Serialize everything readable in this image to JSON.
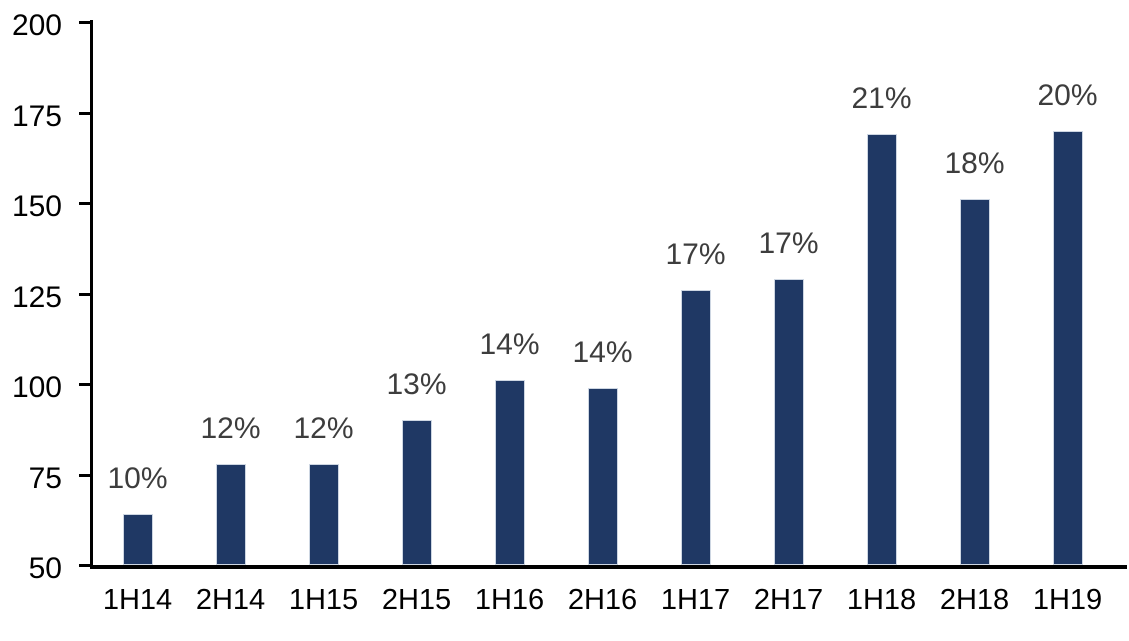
{
  "chart_data": {
    "type": "bar",
    "title": "",
    "xlabel": "",
    "ylabel": "",
    "categories": [
      "1H14",
      "2H14",
      "1H15",
      "2H15",
      "1H16",
      "2H16",
      "1H17",
      "2H17",
      "1H18",
      "2H18",
      "1H19"
    ],
    "values": [
      64,
      78,
      78,
      90,
      101,
      99,
      126,
      129,
      169,
      151,
      170
    ],
    "data_labels": [
      "10%",
      "12%",
      "12%",
      "13%",
      "14%",
      "14%",
      "17%",
      "17%",
      "21%",
      "18%",
      "20%"
    ],
    "ylim": [
      50,
      200
    ],
    "yticks": [
      50,
      75,
      100,
      125,
      150,
      175,
      200
    ],
    "grid": false,
    "legend": false,
    "colors": {
      "bar": "#1f3864",
      "bar_border": "#cdd6e2",
      "data_label": "#3d3d3d",
      "axis": "#000000",
      "tick_label": "#000000",
      "background": "#ffffff"
    }
  }
}
